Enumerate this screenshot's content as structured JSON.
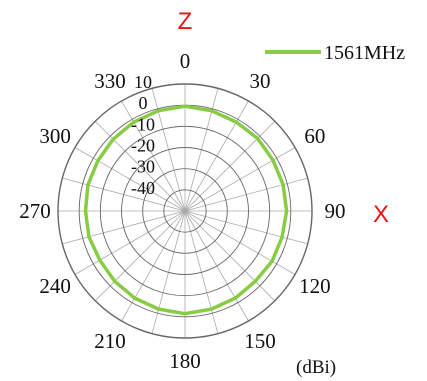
{
  "chart_data": {
    "type": "polar-line",
    "unit": "(dBi)",
    "radial_range": [
      -50,
      10
    ],
    "radial_ticks": [
      10,
      0,
      -10,
      -20,
      -30,
      -40
    ],
    "radial_tick_labels": [
      "10",
      "0",
      "-10",
      "-20",
      "-30",
      "-40"
    ],
    "angular_ticks": [
      0,
      30,
      60,
      90,
      120,
      150,
      180,
      210,
      240,
      270,
      300,
      330
    ],
    "angular_tick_labels": [
      "0",
      "30",
      "60",
      "90",
      "120",
      "150",
      "180",
      "210",
      "240",
      "270",
      "300",
      "330"
    ],
    "axis_labels": {
      "top": "Z",
      "right": "X"
    },
    "grid": true,
    "legend": {
      "position": "top-right",
      "entries": [
        "1561MHz"
      ]
    },
    "series": [
      {
        "name": "1561MHz",
        "color": "#88cc44",
        "angles": [
          0,
          15,
          30,
          45,
          60,
          75,
          90,
          105,
          120,
          135,
          150,
          165,
          180,
          195,
          210,
          225,
          240,
          255,
          270,
          285,
          300,
          315,
          330,
          345
        ],
        "values": [
          -0.5,
          -1,
          -1.5,
          -1.5,
          -2,
          -2,
          -2,
          -2.5,
          -2.5,
          -3,
          -2.5,
          -2,
          -1.5,
          -2,
          -2.5,
          -3,
          -3.5,
          -3,
          -3,
          -2.5,
          -2.5,
          -2,
          -1.5,
          -1
        ]
      }
    ]
  },
  "colors": {
    "axis_letter": "#ee1111",
    "grid_ring": "#666666",
    "grid_spoke": "#aaaaaa"
  }
}
